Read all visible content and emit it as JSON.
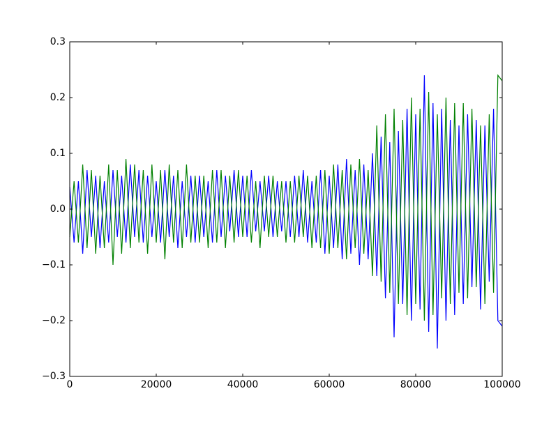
{
  "chart_data": {
    "type": "line",
    "x": [
      0,
      1000,
      2000,
      3000,
      4000,
      5000,
      6000,
      7000,
      8000,
      9000,
      10000,
      11000,
      12000,
      13000,
      14000,
      15000,
      16000,
      17000,
      18000,
      19000,
      20000,
      21000,
      22000,
      23000,
      24000,
      25000,
      26000,
      27000,
      28000,
      29000,
      30000,
      31000,
      32000,
      33000,
      34000,
      35000,
      36000,
      37000,
      38000,
      39000,
      40000,
      41000,
      42000,
      43000,
      44000,
      45000,
      46000,
      47000,
      48000,
      49000,
      50000,
      51000,
      52000,
      53000,
      54000,
      55000,
      56000,
      57000,
      58000,
      59000,
      60000,
      61000,
      62000,
      63000,
      64000,
      65000,
      66000,
      67000,
      68000,
      69000,
      70000,
      71000,
      72000,
      73000,
      74000,
      75000,
      76000,
      77000,
      78000,
      79000,
      80000,
      81000,
      82000,
      83000,
      84000,
      85000,
      86000,
      87000,
      88000,
      89000,
      90000,
      91000,
      92000,
      93000,
      94000,
      95000,
      96000,
      97000,
      98000,
      99000,
      100000
    ],
    "series": [
      {
        "color": "#0000ff",
        "values": [
          0.04,
          -0.06,
          0.05,
          -0.08,
          0.07,
          -0.05,
          0.06,
          -0.07,
          0.05,
          -0.06,
          0.07,
          -0.05,
          0.06,
          -0.06,
          0.08,
          -0.05,
          0.07,
          -0.06,
          0.06,
          -0.05,
          0.05,
          -0.06,
          0.07,
          -0.05,
          0.06,
          -0.07,
          0.05,
          -0.05,
          0.06,
          -0.06,
          0.06,
          -0.05,
          0.05,
          -0.06,
          0.07,
          -0.05,
          0.06,
          -0.04,
          0.07,
          -0.05,
          0.06,
          -0.05,
          0.07,
          -0.04,
          0.05,
          -0.04,
          0.06,
          -0.05,
          0.05,
          -0.04,
          0.05,
          -0.05,
          0.06,
          -0.05,
          0.07,
          -0.06,
          0.05,
          -0.06,
          0.07,
          -0.08,
          0.06,
          -0.07,
          0.08,
          -0.09,
          0.09,
          -0.08,
          0.07,
          -0.1,
          0.08,
          -0.09,
          0.1,
          -0.12,
          0.13,
          -0.16,
          0.12,
          -0.23,
          0.14,
          -0.17,
          0.18,
          -0.2,
          0.17,
          -0.18,
          0.24,
          -0.22,
          0.19,
          -0.25,
          0.18,
          -0.2,
          0.16,
          -0.19,
          0.15,
          -0.17,
          0.17,
          -0.14,
          0.16,
          -0.18,
          0.15,
          -0.13,
          0.18,
          -0.2,
          -0.21
        ]
      },
      {
        "color": "#008000",
        "values": [
          -0.05,
          0.05,
          -0.06,
          0.08,
          -0.07,
          0.07,
          -0.08,
          0.06,
          -0.07,
          0.08,
          -0.1,
          0.07,
          -0.08,
          0.09,
          -0.07,
          0.08,
          -0.06,
          0.07,
          -0.08,
          0.08,
          -0.06,
          0.07,
          -0.09,
          0.08,
          -0.06,
          0.07,
          -0.07,
          0.08,
          -0.06,
          0.06,
          -0.06,
          0.06,
          -0.07,
          0.07,
          -0.06,
          0.07,
          -0.07,
          0.06,
          -0.06,
          0.07,
          -0.05,
          0.06,
          -0.06,
          0.05,
          -0.07,
          0.06,
          -0.05,
          0.06,
          -0.05,
          0.05,
          -0.06,
          0.05,
          -0.06,
          0.06,
          -0.05,
          0.06,
          -0.07,
          0.06,
          -0.07,
          0.07,
          -0.08,
          0.08,
          -0.07,
          0.07,
          -0.09,
          0.08,
          -0.07,
          0.09,
          -0.08,
          0.07,
          -0.12,
          0.15,
          -0.13,
          0.17,
          -0.15,
          0.18,
          -0.17,
          0.16,
          -0.19,
          0.2,
          -0.17,
          0.18,
          -0.2,
          0.21,
          -0.19,
          0.17,
          -0.16,
          0.2,
          -0.17,
          0.19,
          -0.15,
          0.19,
          -0.16,
          0.18,
          -0.14,
          0.15,
          -0.17,
          0.17,
          -0.15,
          0.24,
          0.23
        ]
      }
    ],
    "xlim": [
      0,
      100000
    ],
    "xticks": [
      0,
      20000,
      40000,
      60000,
      80000,
      100000
    ],
    "ylim": [
      -0.3,
      0.3
    ],
    "yticks": [
      {
        "value": -0.3,
        "label": "−0.3"
      },
      {
        "value": -0.2,
        "label": "−0.2"
      },
      {
        "value": -0.1,
        "label": "−0.1"
      },
      {
        "value": 0,
        "label": "0.0"
      },
      0.1,
      0.2,
      0.3
    ]
  }
}
